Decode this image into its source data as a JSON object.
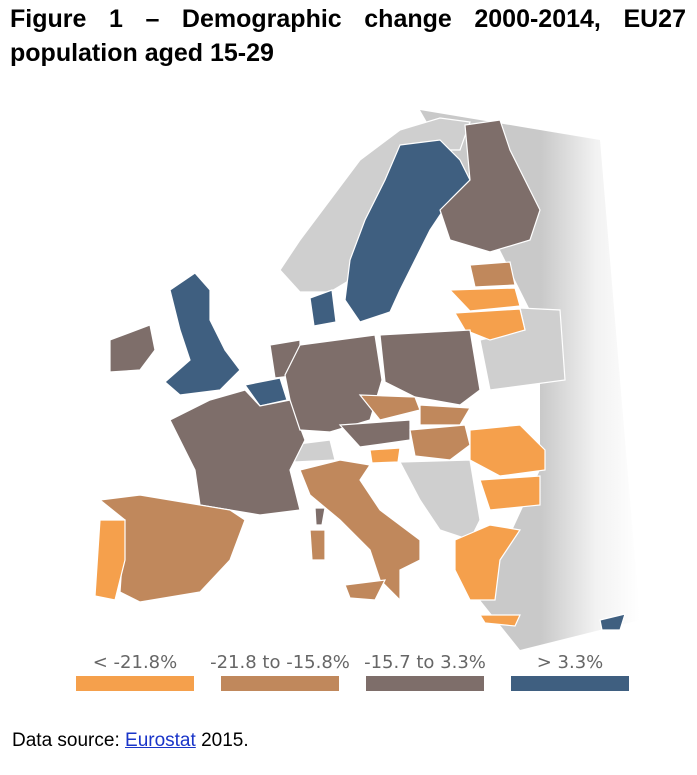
{
  "header": {
    "title": "Figure 1 – Demographic change 2000-2014, EU27 population aged 15-29"
  },
  "legend": [
    {
      "label": "< -21.8%",
      "color": "#f5a04c"
    },
    {
      "label": "-21.8 to -15.8%",
      "color": "#c0885c"
    },
    {
      "label": "-15.7 to 3.3%",
      "color": "#7e6e6a"
    },
    {
      "label": "> 3.3%",
      "color": "#3f5f80"
    }
  ],
  "source": {
    "prefix": "Data source:",
    "link": "Eurostat",
    "suffix": "2015."
  }
}
